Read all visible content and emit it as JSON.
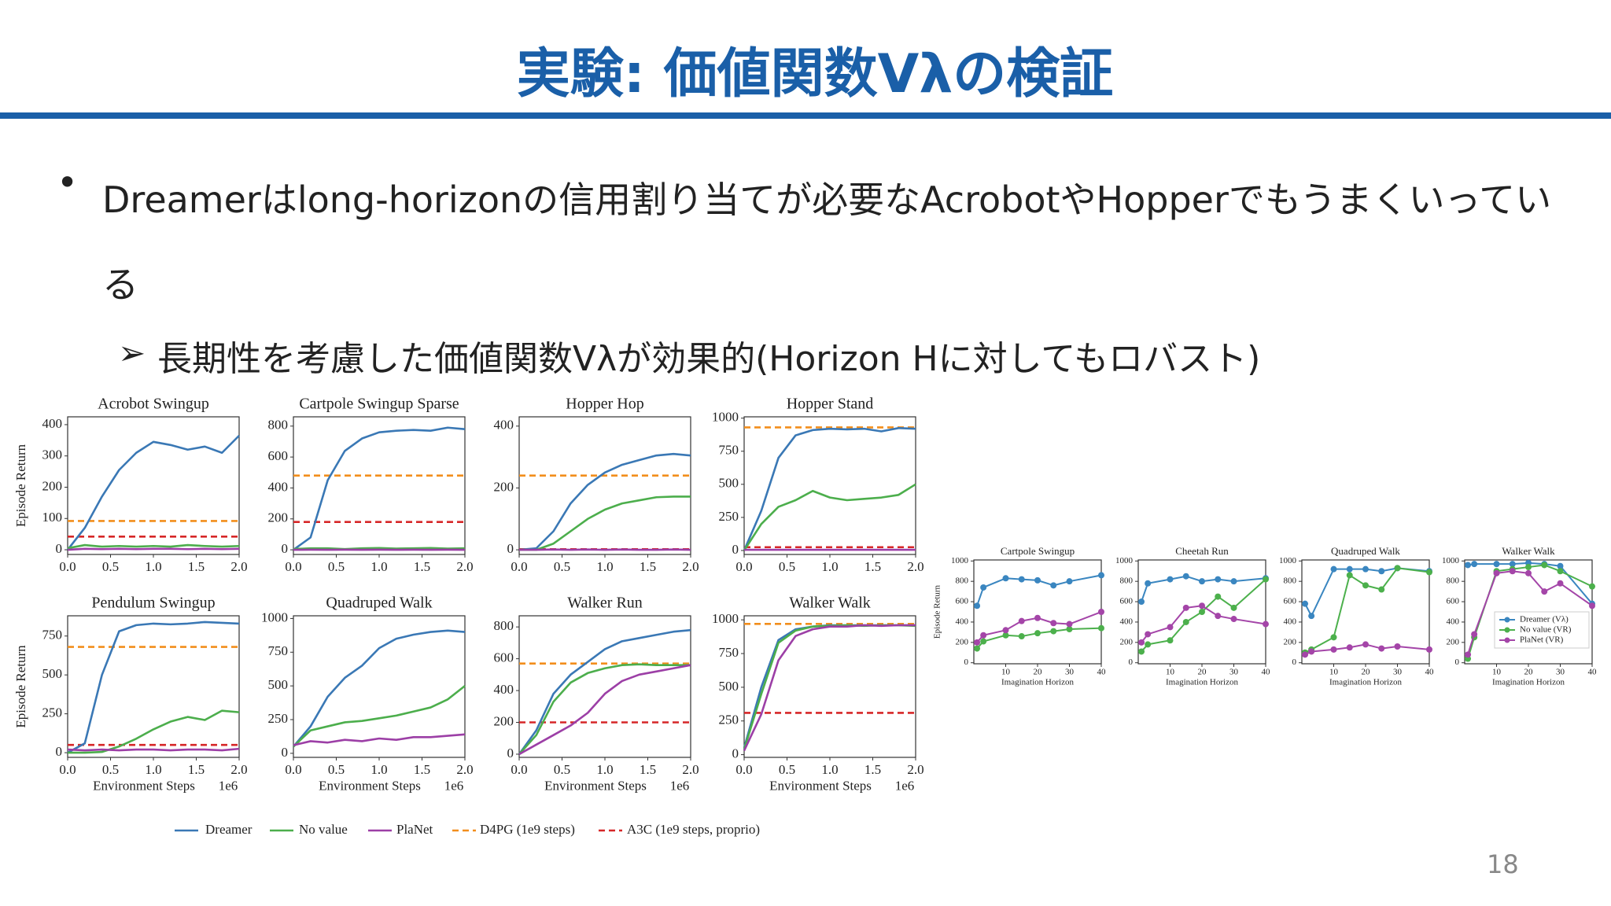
{
  "title": "実験: 価値関数Vλの検証",
  "bullet": "Dreamerはlong-horizonの信用割り当てが必要なAcrobotやHopperでもうまくいっている",
  "subbullet": "長期性を考慮した価値関数Vλが効果的(Horizon Hに対してもロバスト)",
  "page_number": "18",
  "legend": [
    {
      "name": "Dreamer",
      "color": "#3a78b5",
      "style": "solid"
    },
    {
      "name": "No value",
      "color": "#4cae4c",
      "style": "solid"
    },
    {
      "name": "PlaNet",
      "color": "#9c3fa6",
      "style": "solid"
    },
    {
      "name": "D4PG (1e9 steps)",
      "color": "#f28e1c",
      "style": "dashed"
    },
    {
      "name": "A3C (1e9 steps, proprio)",
      "color": "#d62728",
      "style": "dashed"
    }
  ],
  "chart_data": [
    {
      "type": "line",
      "title": "Acrobot Swingup",
      "ylabel": "Episode Return",
      "x": [
        0,
        0.2,
        0.4,
        0.6,
        0.8,
        1,
        1.2,
        1.4,
        1.6,
        1.8,
        2
      ],
      "xlim": [
        0,
        2
      ],
      "xticks": [
        {
          "value": 0,
          "label": "0.0"
        },
        0.5,
        {
          "value": 1,
          "label": "1.0"
        },
        1.5,
        {
          "value": 2,
          "label": "2.0"
        }
      ],
      "ylim": [
        -15,
        425
      ],
      "yticks": [
        0,
        100,
        200,
        300,
        400
      ],
      "series": [
        {
          "color": "#3a78b5",
          "values": [
            0,
            70,
            170,
            255,
            310,
            345,
            335,
            320,
            330,
            310,
            365
          ]
        },
        {
          "color": "#4cae4c",
          "values": [
            5,
            15,
            10,
            12,
            10,
            12,
            10,
            15,
            12,
            10,
            12
          ]
        },
        {
          "color": "#9c3fa6",
          "values": [
            0,
            3,
            2,
            3,
            2,
            3,
            3,
            2,
            3,
            2,
            3
          ]
        }
      ],
      "hlines": [
        {
          "color": "#f28e1c",
          "value": 92
        },
        {
          "color": "#d62728",
          "value": 42
        }
      ]
    },
    {
      "type": "line",
      "title": "Cartpole Swingup Sparse",
      "x": [
        0,
        0.2,
        0.4,
        0.6,
        0.8,
        1,
        1.2,
        1.4,
        1.6,
        1.8,
        2
      ],
      "xlim": [
        0,
        2
      ],
      "xticks": [
        {
          "value": 0,
          "label": "0.0"
        },
        0.5,
        {
          "value": 1,
          "label": "1.0"
        },
        1.5,
        {
          "value": 2,
          "label": "2.0"
        }
      ],
      "ylim": [
        -30,
        860
      ],
      "yticks": [
        0,
        200,
        400,
        600,
        800
      ],
      "series": [
        {
          "color": "#3a78b5",
          "values": [
            0,
            80,
            450,
            640,
            720,
            760,
            770,
            775,
            770,
            790,
            780
          ]
        },
        {
          "color": "#4cae4c",
          "values": [
            5,
            10,
            10,
            5,
            10,
            12,
            8,
            10,
            12,
            8,
            10
          ]
        },
        {
          "color": "#9c3fa6",
          "values": [
            0,
            1,
            0,
            1,
            0,
            1,
            0,
            1,
            0,
            1,
            0
          ]
        }
      ],
      "hlines": [
        {
          "color": "#f28e1c",
          "value": 480
        },
        {
          "color": "#d62728",
          "value": 180
        }
      ]
    },
    {
      "type": "line",
      "title": "Hopper Hop",
      "x": [
        0,
        0.2,
        0.4,
        0.6,
        0.8,
        1,
        1.2,
        1.4,
        1.6,
        1.8,
        2
      ],
      "xlim": [
        0,
        2
      ],
      "xticks": [
        {
          "value": 0,
          "label": "0.0"
        },
        0.5,
        {
          "value": 1,
          "label": "1.0"
        },
        1.5,
        {
          "value": 2,
          "label": "2.0"
        }
      ],
      "ylim": [
        -15,
        430
      ],
      "yticks": [
        0,
        200,
        400
      ],
      "series": [
        {
          "color": "#3a78b5",
          "values": [
            0,
            5,
            60,
            150,
            210,
            250,
            275,
            290,
            305,
            310,
            305
          ]
        },
        {
          "color": "#4cae4c",
          "values": [
            0,
            0,
            20,
            60,
            100,
            130,
            150,
            160,
            170,
            172,
            172
          ]
        },
        {
          "color": "#9c3fa6",
          "values": [
            0,
            0,
            1,
            0,
            1,
            0,
            1,
            0,
            0,
            1,
            0
          ]
        }
      ],
      "hlines": [
        {
          "color": "#f28e1c",
          "value": 240
        },
        {
          "color": "#d62728",
          "value": 2
        }
      ]
    },
    {
      "type": "line",
      "title": "Hopper Stand",
      "x": [
        0,
        0.2,
        0.4,
        0.6,
        0.8,
        1,
        1.2,
        1.4,
        1.6,
        1.8,
        2
      ],
      "xlim": [
        0,
        2
      ],
      "xticks": [
        {
          "value": 0,
          "label": "0.0"
        },
        0.5,
        {
          "value": 1,
          "label": "1.0"
        },
        1.5,
        {
          "value": 2,
          "label": "2.0"
        }
      ],
      "ylim": [
        -30,
        1010
      ],
      "yticks": [
        0,
        250,
        500,
        750,
        1000
      ],
      "series": [
        {
          "color": "#3a78b5",
          "values": [
            0,
            300,
            700,
            870,
            910,
            920,
            915,
            920,
            900,
            925,
            920
          ]
        },
        {
          "color": "#4cae4c",
          "values": [
            0,
            200,
            330,
            380,
            450,
            400,
            380,
            390,
            400,
            420,
            500
          ]
        },
        {
          "color": "#9c3fa6",
          "values": [
            5,
            5,
            5,
            5,
            5,
            5,
            5,
            5,
            5,
            5,
            5
          ]
        }
      ],
      "hlines": [
        {
          "color": "#f28e1c",
          "value": 930
        },
        {
          "color": "#d62728",
          "value": 25
        }
      ]
    },
    {
      "type": "line",
      "title": "Pendulum Swingup",
      "ylabel": "Episode Return",
      "xlabel": "Environment Steps",
      "x_offset_label": "1e6",
      "x": [
        0,
        0.2,
        0.4,
        0.6,
        0.8,
        1,
        1.2,
        1.4,
        1.6,
        1.8,
        2
      ],
      "xlim": [
        0,
        2
      ],
      "xticks": [
        {
          "value": 0,
          "label": "0.0"
        },
        0.5,
        {
          "value": 1,
          "label": "1.0"
        },
        1.5,
        {
          "value": 2,
          "label": "2.0"
        }
      ],
      "ylim": [
        -30,
        880
      ],
      "yticks": [
        0,
        250,
        500,
        750
      ],
      "series": [
        {
          "color": "#3a78b5",
          "values": [
            0,
            60,
            500,
            780,
            820,
            830,
            825,
            830,
            840,
            835,
            830
          ]
        },
        {
          "color": "#4cae4c",
          "values": [
            0,
            0,
            5,
            40,
            90,
            150,
            200,
            230,
            210,
            270,
            260
          ]
        },
        {
          "color": "#9c3fa6",
          "values": [
            20,
            15,
            20,
            15,
            20,
            20,
            15,
            20,
            20,
            15,
            25
          ]
        }
      ],
      "hlines": [
        {
          "color": "#f28e1c",
          "value": 680
        },
        {
          "color": "#d62728",
          "value": 50
        }
      ]
    },
    {
      "type": "line",
      "title": "Quadruped Walk",
      "xlabel": "Environment Steps",
      "x_offset_label": "1e6",
      "x": [
        0,
        0.2,
        0.4,
        0.6,
        0.8,
        1,
        1.2,
        1.4,
        1.6,
        1.8,
        2
      ],
      "xlim": [
        0,
        2
      ],
      "xticks": [
        {
          "value": 0,
          "label": "0.0"
        },
        0.5,
        {
          "value": 1,
          "label": "1.0"
        },
        1.5,
        {
          "value": 2,
          "label": "2.0"
        }
      ],
      "ylim": [
        -30,
        1020
      ],
      "yticks": [
        0,
        250,
        500,
        750,
        1000
      ],
      "series": [
        {
          "color": "#3a78b5",
          "values": [
            50,
            200,
            420,
            560,
            650,
            780,
            850,
            880,
            900,
            910,
            900
          ]
        },
        {
          "color": "#4cae4c",
          "values": [
            50,
            170,
            200,
            230,
            240,
            260,
            280,
            310,
            340,
            400,
            500
          ]
        },
        {
          "color": "#9c3fa6",
          "values": [
            60,
            90,
            80,
            100,
            90,
            110,
            100,
            120,
            120,
            130,
            140
          ]
        }
      ],
      "hlines": []
    },
    {
      "type": "line",
      "title": "Walker Run",
      "xlabel": "Environment Steps",
      "x_offset_label": "1e6",
      "x": [
        0,
        0.2,
        0.4,
        0.6,
        0.8,
        1,
        1.2,
        1.4,
        1.6,
        1.8,
        2
      ],
      "xlim": [
        0,
        2
      ],
      "xticks": [
        {
          "value": 0,
          "label": "0.0"
        },
        0.5,
        {
          "value": 1,
          "label": "1.0"
        },
        1.5,
        {
          "value": 2,
          "label": "2.0"
        }
      ],
      "ylim": [
        -20,
        870
      ],
      "yticks": [
        0,
        200,
        400,
        600,
        800
      ],
      "series": [
        {
          "color": "#3a78b5",
          "values": [
            0,
            150,
            380,
            500,
            580,
            660,
            710,
            730,
            750,
            770,
            780
          ]
        },
        {
          "color": "#4cae4c",
          "values": [
            0,
            120,
            330,
            450,
            510,
            540,
            560,
            565,
            560,
            560,
            560
          ]
        },
        {
          "color": "#9c3fa6",
          "values": [
            0,
            60,
            120,
            180,
            260,
            380,
            460,
            500,
            520,
            540,
            560
          ]
        }
      ],
      "hlines": [
        {
          "color": "#f28e1c",
          "value": 570
        },
        {
          "color": "#d62728",
          "value": 200
        }
      ]
    },
    {
      "type": "line",
      "title": "Walker Walk",
      "xlabel": "Environment Steps",
      "x_offset_label": "1e6",
      "x": [
        0,
        0.2,
        0.4,
        0.6,
        0.8,
        1,
        1.2,
        1.4,
        1.6,
        1.8,
        2
      ],
      "xlim": [
        0,
        2
      ],
      "xticks": [
        {
          "value": 0,
          "label": "0.0"
        },
        0.5,
        {
          "value": 1,
          "label": "1.0"
        },
        1.5,
        {
          "value": 2,
          "label": "2.0"
        }
      ],
      "ylim": [
        -20,
        1030
      ],
      "yticks": [
        0,
        250,
        500,
        750,
        1000
      ],
      "series": [
        {
          "color": "#3a78b5",
          "values": [
            50,
            500,
            850,
            930,
            950,
            960,
            960,
            960,
            960,
            960,
            960
          ]
        },
        {
          "color": "#4cae4c",
          "values": [
            40,
            450,
            830,
            920,
            950,
            955,
            960,
            955,
            960,
            960,
            955
          ]
        },
        {
          "color": "#9c3fa6",
          "values": [
            30,
            300,
            700,
            880,
            930,
            950,
            950,
            960,
            955,
            960,
            960
          ]
        }
      ],
      "hlines": [
        {
          "color": "#f28e1c",
          "value": 970
        },
        {
          "color": "#d62728",
          "value": 310
        }
      ]
    },
    {
      "type": "line",
      "markers": true,
      "title": "Cartpole Swingup",
      "ylabel": "Episode Return",
      "xlabel": "Imagination Horizon",
      "x": [
        1,
        3,
        10,
        15,
        20,
        25,
        30,
        40
      ],
      "xlim": [
        0,
        40
      ],
      "xticks": [
        10,
        20,
        30,
        40
      ],
      "ylim": [
        -10,
        1010
      ],
      "yticks": [
        0,
        200,
        400,
        600,
        800,
        1000
      ],
      "series": [
        {
          "color": "#3a86c0",
          "values": [
            560,
            740,
            830,
            820,
            810,
            760,
            800,
            860
          ]
        },
        {
          "color": "#4cb04c",
          "values": [
            140,
            210,
            270,
            260,
            290,
            310,
            330,
            340
          ]
        },
        {
          "color": "#a445a8",
          "values": [
            200,
            270,
            320,
            410,
            440,
            390,
            380,
            500
          ]
        }
      ]
    },
    {
      "type": "line",
      "markers": true,
      "title": "Cheetah Run",
      "xlabel": "Imagination Horizon",
      "x": [
        1,
        3,
        10,
        15,
        20,
        25,
        30,
        40
      ],
      "xlim": [
        0,
        40
      ],
      "xticks": [
        10,
        20,
        30,
        40
      ],
      "ylim": [
        -10,
        1010
      ],
      "yticks": [
        0,
        200,
        400,
        600,
        800,
        1000
      ],
      "series": [
        {
          "color": "#3a86c0",
          "values": [
            600,
            780,
            820,
            850,
            800,
            820,
            800,
            830
          ]
        },
        {
          "color": "#4cb04c",
          "values": [
            110,
            180,
            220,
            400,
            500,
            650,
            540,
            820
          ]
        },
        {
          "color": "#a445a8",
          "values": [
            200,
            280,
            350,
            540,
            560,
            460,
            430,
            380
          ]
        }
      ]
    },
    {
      "type": "line",
      "markers": true,
      "title": "Quadruped Walk",
      "xlabel": "Imagination Horizon",
      "x": [
        1,
        3,
        10,
        15,
        20,
        25,
        30,
        40
      ],
      "xlim": [
        0,
        40
      ],
      "xticks": [
        10,
        20,
        30,
        40
      ],
      "ylim": [
        -10,
        1010
      ],
      "yticks": [
        0,
        200,
        400,
        600,
        800,
        1000
      ],
      "series": [
        {
          "color": "#3a86c0",
          "values": [
            580,
            460,
            920,
            920,
            920,
            900,
            930,
            900
          ]
        },
        {
          "color": "#4cb04c",
          "values": [
            100,
            130,
            250,
            860,
            760,
            720,
            930,
            890
          ]
        },
        {
          "color": "#a445a8",
          "values": [
            80,
            110,
            130,
            150,
            180,
            140,
            160,
            130
          ]
        }
      ]
    },
    {
      "type": "line",
      "markers": true,
      "title": "Walker Walk",
      "xlabel": "Imagination Horizon",
      "x": [
        1,
        3,
        10,
        15,
        20,
        25,
        30,
        40
      ],
      "xlim": [
        0,
        40
      ],
      "xticks": [
        10,
        20,
        30,
        40
      ],
      "ylim": [
        -10,
        1010
      ],
      "yticks": [
        0,
        200,
        400,
        600,
        800,
        1000
      ],
      "legend": [
        "Dreamer (Vλ)",
        "No value (VR)",
        "PlaNet (VR)"
      ],
      "series": [
        {
          "color": "#3a86c0",
          "values": [
            960,
            970,
            970,
            970,
            980,
            970,
            950,
            580
          ]
        },
        {
          "color": "#4cb04c",
          "values": [
            40,
            250,
            900,
            920,
            940,
            960,
            900,
            750
          ]
        },
        {
          "color": "#a445a8",
          "values": [
            80,
            280,
            880,
            900,
            880,
            700,
            780,
            560
          ]
        }
      ]
    }
  ]
}
